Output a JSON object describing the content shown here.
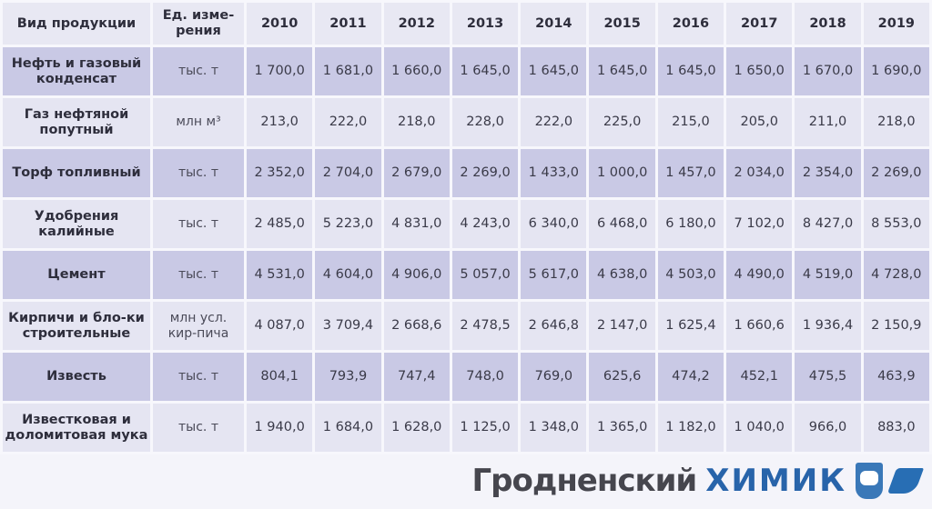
{
  "header": {
    "product": "Вид продукции",
    "unit": "Ед. изме-рения",
    "years": [
      "2010",
      "2011",
      "2012",
      "2013",
      "2014",
      "2015",
      "2016",
      "2017",
      "2018",
      "2019"
    ]
  },
  "rows": [
    {
      "name": "Нефть и газовый конденсат",
      "unit": "тыс. т",
      "values": [
        "1 700,0",
        "1 681,0",
        "1 660,0",
        "1 645,0",
        "1 645,0",
        "1 645,0",
        "1 645,0",
        "1 650,0",
        "1 670,0",
        "1 690,0"
      ]
    },
    {
      "name": "Газ нефтяной попутный",
      "unit": "млн м³",
      "values": [
        "213,0",
        "222,0",
        "218,0",
        "228,0",
        "222,0",
        "225,0",
        "215,0",
        "205,0",
        "211,0",
        "218,0"
      ]
    },
    {
      "name": "Торф топливный",
      "unit": "тыс. т",
      "values": [
        "2 352,0",
        "2 704,0",
        "2 679,0",
        "2 269,0",
        "1 433,0",
        "1 000,0",
        "1 457,0",
        "2 034,0",
        "2 354,0",
        "2 269,0"
      ]
    },
    {
      "name": "Удобрения калийные",
      "unit": "тыс. т",
      "values": [
        "2 485,0",
        "5 223,0",
        "4 831,0",
        "4 243,0",
        "6 340,0",
        "6 468,0",
        "6 180,0",
        "7 102,0",
        "8 427,0",
        "8 553,0"
      ]
    },
    {
      "name": "Цемент",
      "unit": "тыс. т",
      "values": [
        "4 531,0",
        "4 604,0",
        "4 906,0",
        "5 057,0",
        "5 617,0",
        "4 638,0",
        "4 503,0",
        "4 490,0",
        "4 519,0",
        "4 728,0"
      ]
    },
    {
      "name": "Кирпичи и бло-ки строительные",
      "unit": "млн усл. кир-пича",
      "values": [
        "4 087,0",
        "3 709,4",
        "2 668,6",
        "2 478,5",
        "2 646,8",
        "2 147,0",
        "1 625,4",
        "1 660,6",
        "1 936,4",
        "2 150,9"
      ]
    },
    {
      "name": "Известь",
      "unit": "тыс. т",
      "values": [
        "804,1",
        "793,9",
        "747,4",
        "748,0",
        "769,0",
        "625,6",
        "474,2",
        "452,1",
        "475,5",
        "463,9"
      ]
    },
    {
      "name": "Известковая и доломитовая мука",
      "unit": "тыс. т",
      "values": [
        "1 940,0",
        "1 684,0",
        "1 628,0",
        "1 125,0",
        "1 348,0",
        "1 365,0",
        "1 182,0",
        "1 040,0",
        "966,0",
        "883,0"
      ]
    }
  ],
  "watermark": {
    "line1": "Гродненский",
    "line2": "ХИМИК"
  }
}
